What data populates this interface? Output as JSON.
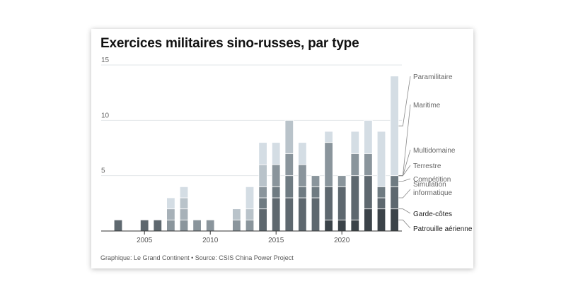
{
  "chart_data": {
    "type": "bar",
    "stacked": true,
    "title": "Exercices militaires sino-russes, par type",
    "source": "Graphique: Le Grand Continent • Source: CSIS China Power Project",
    "ylim": [
      0,
      15
    ],
    "yticks": [
      5,
      10,
      15
    ],
    "xticks": [
      2005,
      2010,
      2015,
      2020
    ],
    "grid": true,
    "legend": "right",
    "years": [
      2003,
      2004,
      2005,
      2006,
      2007,
      2008,
      2009,
      2010,
      2011,
      2012,
      2013,
      2014,
      2015,
      2016,
      2017,
      2018,
      2019,
      2020,
      2021,
      2022,
      2023,
      2024
    ],
    "series": [
      {
        "name": "Patrouille aérienne",
        "color": "#3b4349",
        "values": [
          0,
          0,
          0,
          0,
          0,
          0,
          0,
          0,
          0,
          0,
          0,
          0,
          0,
          0,
          0,
          0,
          1,
          1,
          1,
          2,
          2,
          2
        ]
      },
      {
        "name": "Garde-côtes",
        "color": "#4a545b",
        "values": [
          0,
          0,
          0,
          0,
          0,
          0,
          0,
          0,
          0,
          0,
          0,
          0,
          0,
          0,
          0,
          0,
          0,
          0,
          0,
          0,
          0,
          0
        ]
      },
      {
        "name": "Simulation informatique",
        "color": "#5e686f",
        "values": [
          1,
          0,
          1,
          1,
          0,
          0,
          0,
          0,
          0,
          0,
          0,
          2,
          3,
          3,
          3,
          3,
          3,
          3,
          4,
          3,
          1,
          2
        ]
      },
      {
        "name": "Compétition",
        "color": "#6f7b82",
        "values": [
          0,
          0,
          0,
          0,
          0,
          0,
          0,
          0,
          0,
          0,
          0,
          1,
          1,
          2,
          1,
          1,
          0,
          0,
          0,
          0,
          1,
          1
        ]
      },
      {
        "name": "Terrestre",
        "color": "#8a959c",
        "values": [
          0,
          0,
          0,
          0,
          1,
          1,
          1,
          1,
          0,
          1,
          1,
          1,
          2,
          2,
          2,
          1,
          4,
          1,
          2,
          2,
          0,
          0
        ]
      },
      {
        "name": "Multidomaine",
        "color": "#a7b1b8",
        "values": [
          0,
          0,
          0,
          0,
          1,
          1,
          0,
          0,
          0,
          0,
          0,
          0,
          0,
          0,
          0,
          0,
          0,
          0,
          0,
          0,
          0,
          0
        ]
      },
      {
        "name": "Maritime",
        "color": "#b9c3ca",
        "values": [
          0,
          0,
          0,
          0,
          0,
          1,
          0,
          0,
          0,
          1,
          1,
          2,
          0,
          3,
          0,
          0,
          0,
          0,
          0,
          0,
          0,
          0
        ]
      },
      {
        "name": "Paramilitaire",
        "color": "#d4dde4",
        "values": [
          0,
          0,
          0,
          0,
          1,
          1,
          0,
          0,
          0,
          0,
          2,
          2,
          2,
          0,
          2,
          0,
          1,
          0,
          2,
          3,
          5,
          9
        ]
      }
    ]
  }
}
